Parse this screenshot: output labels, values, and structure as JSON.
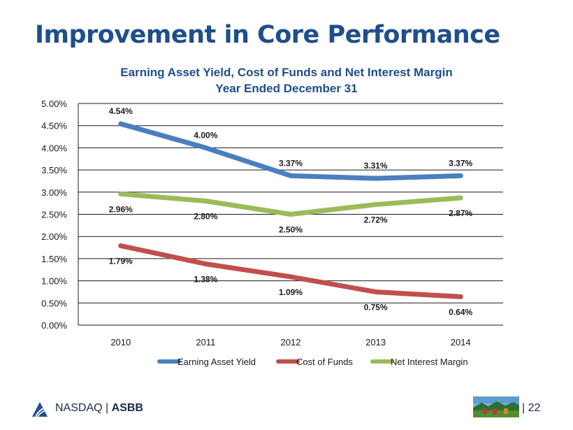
{
  "slide": {
    "title": "Improvement in Core Performance",
    "footer_exchange": "NASDAQ",
    "footer_separator": "|",
    "footer_ticker": "ASBB",
    "page_number": "| 22"
  },
  "chart_data": {
    "type": "line",
    "title": "Earning Asset Yield, Cost of Funds and Net Interest Margin",
    "subtitle": "Year Ended December 31",
    "xlabel": "",
    "ylabel": "",
    "categories": [
      "2010",
      "2011",
      "2012",
      "2013",
      "2014"
    ],
    "ylim": [
      0,
      5
    ],
    "yticks": [
      0,
      0.5,
      1,
      1.5,
      2,
      2.5,
      3,
      3.5,
      4,
      4.5,
      5
    ],
    "ytick_labels": [
      "0.00%",
      "0.50%",
      "1.00%",
      "1.50%",
      "2.00%",
      "2.50%",
      "3.00%",
      "3.50%",
      "4.00%",
      "4.50%",
      "5.00%"
    ],
    "grid": true,
    "legend_position": "bottom",
    "series": [
      {
        "name": "Earning Asset Yield",
        "color": "#4a7ebf",
        "values": [
          4.54,
          4.0,
          3.37,
          3.31,
          3.37
        ],
        "labels": [
          "4.54%",
          "4.00%",
          "3.37%",
          "3.31%",
          "3.37%"
        ],
        "label_position": "above"
      },
      {
        "name": "Cost of Funds",
        "color": "#c0504d",
        "values": [
          1.79,
          1.38,
          1.09,
          0.75,
          0.64
        ],
        "labels": [
          "1.79%",
          "1.38%",
          "1.09%",
          "0.75%",
          "0.64%"
        ],
        "label_position": "below"
      },
      {
        "name": "Net Interest Margin",
        "color": "#9bbb59",
        "values": [
          2.96,
          2.8,
          2.5,
          2.72,
          2.87
        ],
        "labels": [
          "2.96%",
          "2.80%",
          "2.50%",
          "2.72%",
          "2.87%"
        ],
        "label_position": "below"
      }
    ]
  }
}
